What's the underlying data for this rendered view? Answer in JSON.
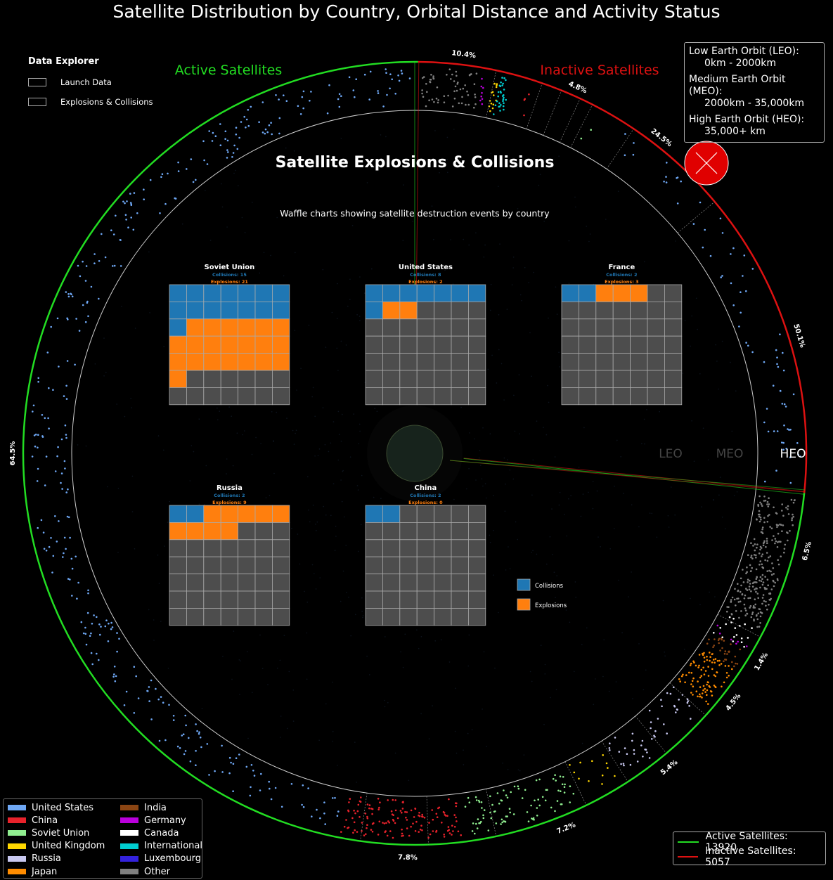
{
  "title": "Satellite Distribution by Country, Orbital Distance and Activity Status",
  "explorer": {
    "heading": "Data Explorer",
    "items": [
      "Launch Data",
      "Explosions & Collisions"
    ]
  },
  "ring_labels": {
    "active": "Active Satellites",
    "inactive": "Inactive Satellites"
  },
  "orbit_info": [
    {
      "name": "Low Earth Orbit (LEO):",
      "range": "0km - 2000km"
    },
    {
      "name": "Medium Earth Orbit (MEO):",
      "range": "2000km - 35,000km"
    },
    {
      "name": "High Earth Orbit (HEO):",
      "range": "35,000+ km"
    }
  ],
  "orbit_axis_labels": [
    "LEO",
    "MEO",
    "HEO"
  ],
  "panel": {
    "title": "Satellite Explosions & Collisions",
    "subtitle": "Waffle charts showing satellite destruction events by country"
  },
  "colors": {
    "active": "#22dd22",
    "inactive": "#dd1111",
    "collisions": "#1f77b4",
    "explosions": "#ff7f0e",
    "empty_cell": "#4d4d4d"
  },
  "country_legend": [
    {
      "name": "United States",
      "color": "#6fa8f5"
    },
    {
      "name": "China",
      "color": "#e8222b"
    },
    {
      "name": "Soviet Union",
      "color": "#90ee90"
    },
    {
      "name": "United Kingdom",
      "color": "#ffd700"
    },
    {
      "name": "Russia",
      "color": "#c8c8f0"
    },
    {
      "name": "Japan",
      "color": "#ff8c00"
    },
    {
      "name": "India",
      "color": "#8b4513"
    },
    {
      "name": "Germany",
      "color": "#bb00dd"
    },
    {
      "name": "Canada",
      "color": "#ffffff"
    },
    {
      "name": "International",
      "color": "#00ced1"
    },
    {
      "name": "Luxembourg",
      "color": "#3322dd"
    },
    {
      "name": "Other",
      "color": "#808080"
    }
  ],
  "status_legend": [
    {
      "label": "Active Satellites: 13920",
      "color": "#22dd22"
    },
    {
      "label": "Inactive Satellites: 5057",
      "color": "#dd1111"
    }
  ],
  "waffle_legend": [
    "Collisions",
    "Explosions"
  ],
  "chart_data": [
    {
      "type": "pie",
      "title": "Satellite Distribution by Country, Orbital Distance and Activity Status",
      "series": [
        {
          "name": "Active Satellites",
          "value": 13920
        },
        {
          "name": "Inactive Satellites",
          "value": 5057
        }
      ],
      "active_segments": [
        {
          "country": "United States",
          "percent": "64.5%"
        },
        {
          "country": "China",
          "percent": "7.8%"
        },
        {
          "country": "Soviet Union",
          "percent": "7.2%"
        },
        {
          "country": "United Kingdom",
          "percent": "5.4%"
        },
        {
          "country": "Russia",
          "percent": "4.5%"
        },
        {
          "country": "Japan",
          "percent": "1.4%"
        },
        {
          "country": "Other",
          "percent": "6.5%"
        }
      ],
      "inactive_segments": [
        {
          "country": "United States",
          "percent": "50.1%"
        },
        {
          "country": "Soviet Union",
          "percent": "24.5%"
        },
        {
          "country": "China",
          "percent": "4.8%"
        },
        {
          "country": "Other",
          "percent": "10.4%"
        }
      ]
    },
    {
      "type": "waffle",
      "title": "Satellite Explosions & Collisions",
      "grid": [
        7,
        7
      ],
      "countries": [
        {
          "name": "Soviet Union",
          "collisions": 15,
          "explosions": 21,
          "collisions_label": "Collisions: 15",
          "explosions_label": "Explosions: 21"
        },
        {
          "name": "United States",
          "collisions": 8,
          "explosions": 2,
          "collisions_label": "Collisions: 8",
          "explosions_label": "Explosions: 2"
        },
        {
          "name": "France",
          "collisions": 2,
          "explosions": 3,
          "collisions_label": "Collisions: 2",
          "explosions_label": "Explosions: 3"
        },
        {
          "name": "Russia",
          "collisions": 2,
          "explosions": 9,
          "collisions_label": "Collisions: 2",
          "explosions_label": "Explosions: 9"
        },
        {
          "name": "China",
          "collisions": 2,
          "explosions": 0,
          "collisions_label": "Collisions: 2",
          "explosions_label": "Explosions: 0"
        }
      ]
    }
  ]
}
